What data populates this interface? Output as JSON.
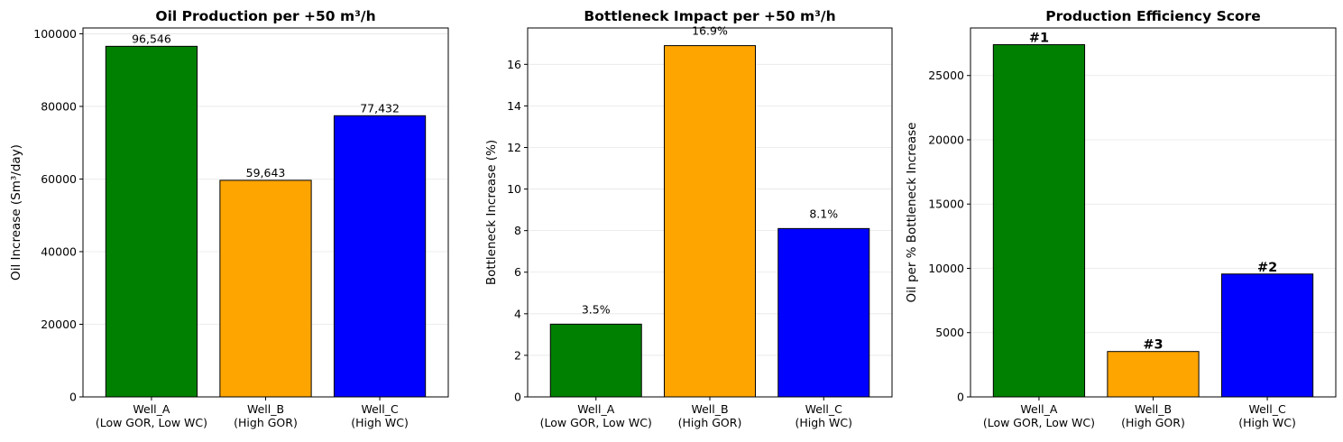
{
  "chart_data": [
    {
      "type": "bar",
      "title": "Oil Production per +50 m³/h",
      "xlabel": "",
      "ylabel": "Oil Increase (Sm³/day)",
      "categories": [
        "Well_A\n(Low GOR, Low WC)",
        "Well_B\n(High GOR)",
        "Well_C\n(High WC)"
      ],
      "values": [
        96546,
        59643,
        77432
      ],
      "data_labels": [
        "96,546",
        "59,643",
        "77,432"
      ],
      "colors": [
        "#008000",
        "#ffa500",
        "#0000ff"
      ],
      "ylim": [
        0,
        101600
      ],
      "yticks": [
        0,
        20000,
        40000,
        60000,
        80000,
        100000
      ],
      "grid": "y"
    },
    {
      "type": "bar",
      "title": "Bottleneck Impact per +50 m³/h",
      "xlabel": "",
      "ylabel": "Bottleneck Increase (%)",
      "categories": [
        "Well_A\n(Low GOR, Low WC)",
        "Well_B\n(High GOR)",
        "Well_C\n(High WC)"
      ],
      "values": [
        3.5,
        16.9,
        8.1
      ],
      "data_labels": [
        "3.5%",
        "16.9%",
        "8.1%"
      ],
      "colors": [
        "#008000",
        "#ffa500",
        "#0000ff"
      ],
      "ylim": [
        0,
        17.75
      ],
      "yticks": [
        0,
        2,
        4,
        6,
        8,
        10,
        12,
        14,
        16
      ],
      "grid": "y"
    },
    {
      "type": "bar",
      "title": "Production Efficiency Score",
      "xlabel": "",
      "ylabel": "Oil per % Bottleneck Increase",
      "categories": [
        "Well_A\n(Low GOR, Low WC)",
        "Well_B\n(High GOR)",
        "Well_C\n(High WC)"
      ],
      "values": [
        27400,
        3530,
        9560
      ],
      "data_labels": [
        "#1",
        "#3",
        "#2"
      ],
      "colors": [
        "#008000",
        "#ffa500",
        "#0000ff"
      ],
      "ylim": [
        0,
        28700
      ],
      "yticks": [
        0,
        5000,
        10000,
        15000,
        20000,
        25000
      ],
      "grid": "y"
    }
  ]
}
